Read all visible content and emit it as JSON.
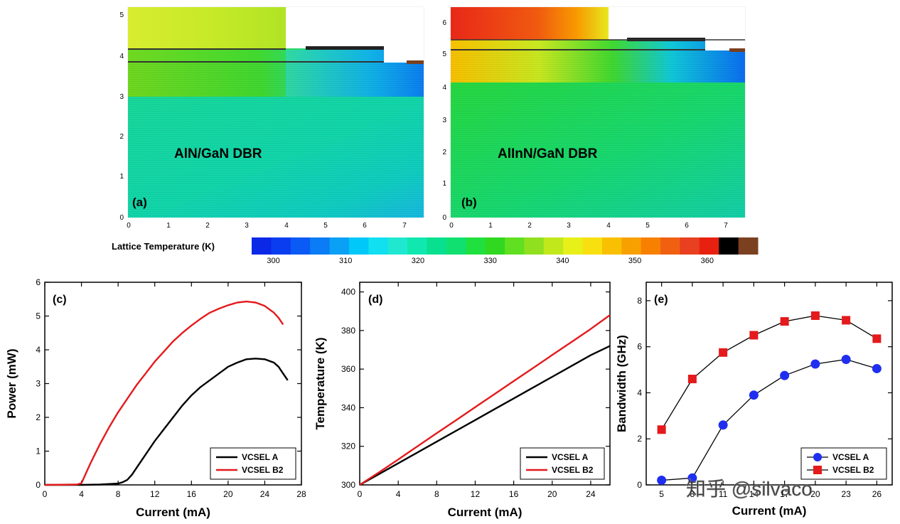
{
  "figure": {
    "colorbar": {
      "label": "Lattice Temperature (K)",
      "ticks": [
        300,
        310,
        320,
        330,
        340,
        350,
        360
      ],
      "min": 297,
      "max": 367,
      "colors": [
        "#0a28e6",
        "#0a3cf0",
        "#0a5af5",
        "#0a7cf5",
        "#0aa0f5",
        "#00c8f8",
        "#10e0f0",
        "#20e8d0",
        "#10e8b0",
        "#08e090",
        "#10e070",
        "#20e040",
        "#30d820",
        "#60e020",
        "#90e020",
        "#c0e81a",
        "#e8f01a",
        "#f8e010",
        "#f8c000",
        "#f8a000",
        "#f88000",
        "#f06010",
        "#e84020",
        "#e82010",
        "#000000",
        "#7a4020"
      ]
    },
    "maps": [
      {
        "panel": "(a)",
        "label": "AlN/GaN DBR",
        "x_ticks": [
          "0",
          "1",
          "2",
          "3",
          "4",
          "5",
          "6",
          "7"
        ],
        "y_ticks": [
          "0",
          "1",
          "2",
          "3",
          "4",
          "5"
        ],
        "xlim": [
          0,
          7.5
        ],
        "ylim": [
          0,
          5.25
        ]
      },
      {
        "panel": "(b)",
        "label": "AlInN/GaN DBR",
        "x_ticks": [
          "0",
          "1",
          "2",
          "3",
          "4",
          "5",
          "6",
          "7"
        ],
        "y_ticks": [
          "0",
          "1",
          "2",
          "3",
          "4",
          "5",
          "6"
        ],
        "xlim": [
          0,
          7.5
        ],
        "ylim": [
          0,
          6.7
        ]
      }
    ]
  },
  "chart_data": [
    {
      "panel": "(c)",
      "type": "line",
      "xlabel": "Current (mA)",
      "ylabel": "Power (mW)",
      "xlim": [
        0,
        28
      ],
      "ylim": [
        0,
        6
      ],
      "x_ticks": [
        0,
        4,
        8,
        12,
        16,
        20,
        24,
        28
      ],
      "y_ticks": [
        0,
        1,
        2,
        3,
        4,
        5,
        6
      ],
      "legend_position": "bottom-right",
      "series": [
        {
          "name": "VCSEL A",
          "color": "#000000",
          "x": [
            0,
            4,
            6,
            8,
            8.5,
            9,
            9.5,
            10,
            11,
            12,
            13,
            14,
            15,
            16,
            17,
            18,
            19,
            20,
            21,
            22,
            23,
            24,
            25,
            25.5,
            26,
            26.5
          ],
          "y": [
            0,
            0,
            0.01,
            0.04,
            0.08,
            0.15,
            0.3,
            0.5,
            0.9,
            1.3,
            1.65,
            2.0,
            2.35,
            2.65,
            2.9,
            3.1,
            3.3,
            3.5,
            3.62,
            3.72,
            3.74,
            3.72,
            3.62,
            3.5,
            3.3,
            3.1
          ]
        },
        {
          "name": "VCSEL B2",
          "color": "#e41a1c",
          "x": [
            0,
            3.5,
            4,
            4.5,
            5,
            6,
            7,
            8,
            9,
            10,
            11,
            12,
            13,
            14,
            15,
            16,
            17,
            18,
            19,
            20,
            21,
            22,
            23,
            24,
            25,
            25.5,
            26
          ],
          "y": [
            0,
            0.01,
            0.05,
            0.35,
            0.65,
            1.2,
            1.7,
            2.15,
            2.55,
            2.95,
            3.3,
            3.65,
            3.95,
            4.25,
            4.5,
            4.72,
            4.92,
            5.1,
            5.22,
            5.32,
            5.4,
            5.43,
            5.4,
            5.3,
            5.1,
            4.95,
            4.75
          ]
        }
      ]
    },
    {
      "panel": "(d)",
      "type": "line",
      "xlabel": "Current (mA)",
      "ylabel": "Temperature (K)",
      "xlim": [
        0,
        26
      ],
      "ylim": [
        300,
        405
      ],
      "x_ticks": [
        0,
        4,
        8,
        12,
        16,
        20,
        24
      ],
      "y_ticks": [
        300,
        320,
        340,
        360,
        380,
        400
      ],
      "legend_position": "bottom-right",
      "series": [
        {
          "name": "VCSEL A",
          "color": "#000000",
          "x": [
            0,
            2,
            4,
            6,
            8,
            10,
            12,
            14,
            16,
            18,
            20,
            22,
            24,
            26
          ],
          "y": [
            300,
            305.6,
            311.2,
            316.8,
            322.4,
            328,
            333.6,
            339.2,
            344.8,
            350.4,
            356,
            361.6,
            367.2,
            372
          ]
        },
        {
          "name": "VCSEL B2",
          "color": "#e41a1c",
          "x": [
            0,
            2,
            4,
            6,
            8,
            10,
            12,
            14,
            16,
            18,
            20,
            22,
            24,
            26
          ],
          "y": [
            300,
            306.5,
            313.2,
            320,
            326.8,
            333.5,
            340.3,
            347,
            353.8,
            360.5,
            367.3,
            374,
            380.8,
            388
          ]
        }
      ]
    },
    {
      "panel": "(e)",
      "type": "line",
      "xlabel": "Current (mA)",
      "ylabel": "Bandwidth (GHz)",
      "xlim": [
        3.5,
        27.5
      ],
      "ylim": [
        0,
        8.8
      ],
      "x_ticks": [
        5,
        8,
        11,
        14,
        17,
        20,
        23,
        26
      ],
      "y_ticks": [
        0,
        2,
        4,
        6,
        8
      ],
      "legend_position": "bottom-right",
      "series": [
        {
          "name": "VCSEL A",
          "color": "#1f2ff0",
          "marker": "circle",
          "x": [
            5,
            8,
            11,
            14,
            17,
            20,
            23,
            26
          ],
          "y": [
            0.2,
            0.3,
            2.6,
            3.9,
            4.75,
            5.25,
            5.45,
            5.05
          ]
        },
        {
          "name": "VCSEL B2",
          "color": "#e41a1c",
          "marker": "square",
          "x": [
            5,
            8,
            11,
            14,
            17,
            20,
            23,
            26
          ],
          "y": [
            2.4,
            4.6,
            5.75,
            6.5,
            7.1,
            7.35,
            7.15,
            6.35
          ]
        }
      ]
    }
  ],
  "watermark": "知乎 @silvaco"
}
